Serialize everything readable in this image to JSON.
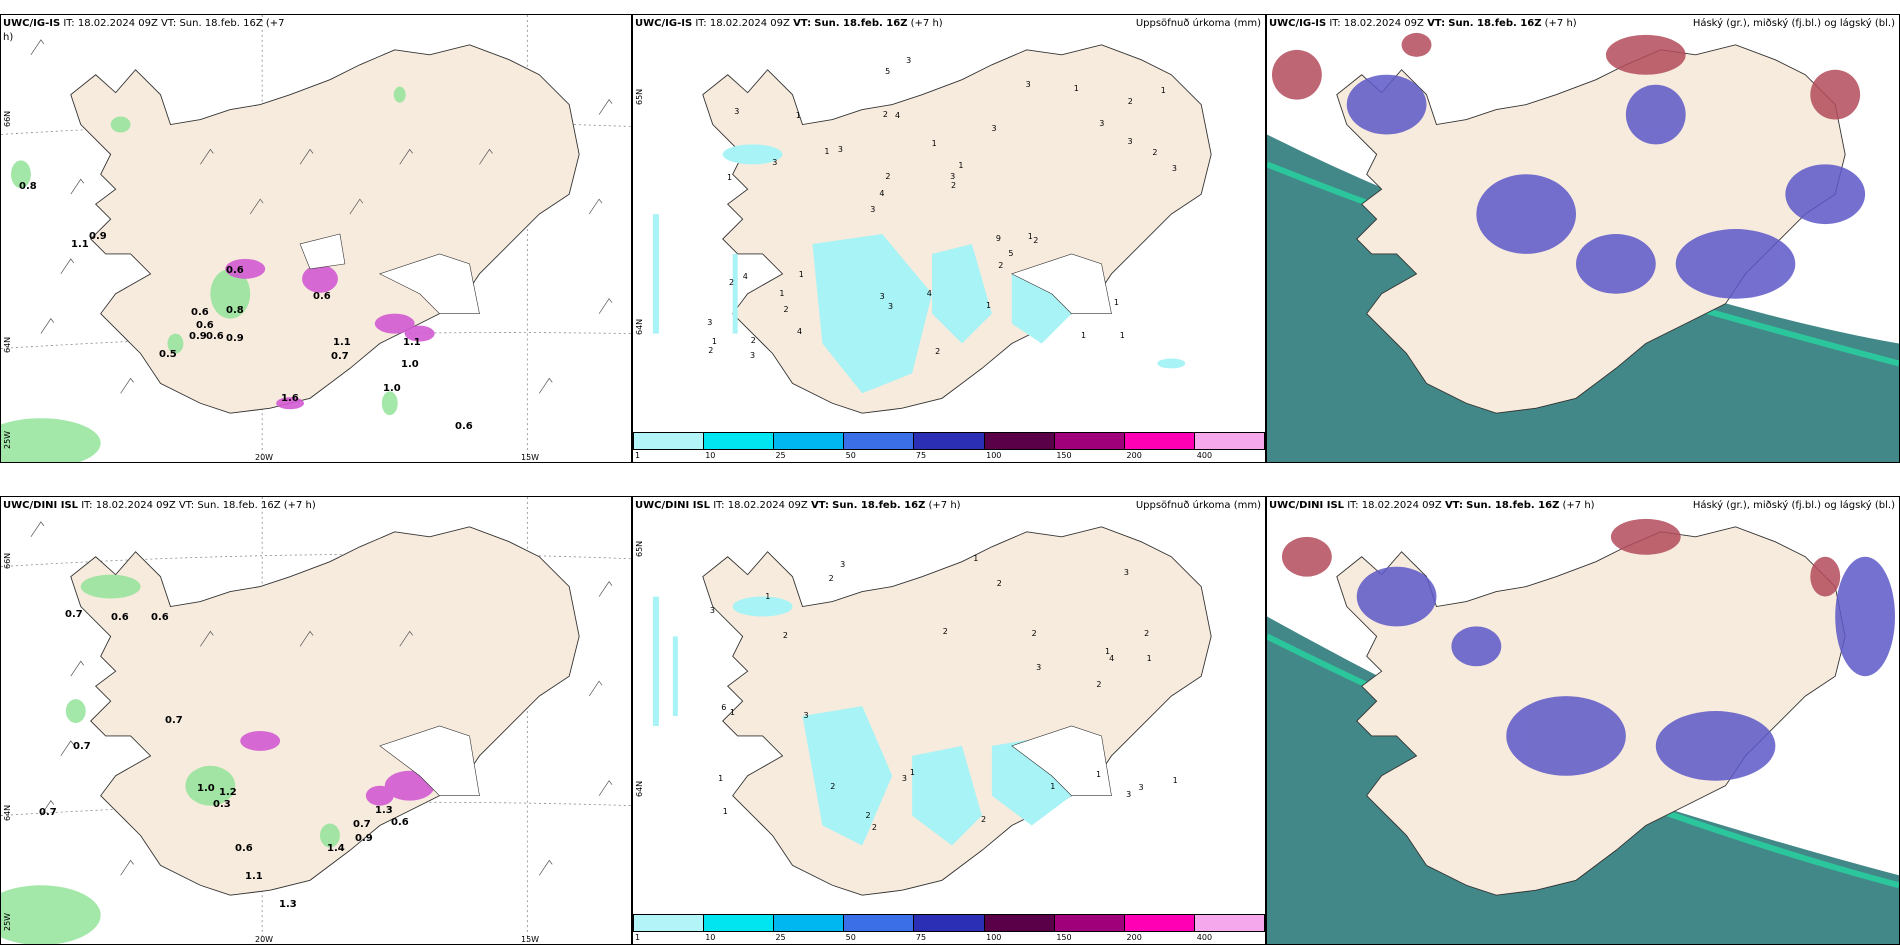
{
  "rows": [
    {
      "model": "UWC/IG-IS",
      "wind_panel": {
        "header_model": "UWC/IG-IS",
        "header_rest": "IT: 18.02.2024 09Z VT: Sun. 18.feb. 16Z (+7",
        "header_wrap": "h)",
        "lat_labels": [
          "66N",
          "64N",
          "25W"
        ],
        "lon_labels": [
          "20W",
          "15W"
        ],
        "values": [
          "0.8",
          "0.9",
          "1.1",
          "0.6",
          "0.6",
          "0.6",
          "0.9",
          "0.6",
          "0.6",
          "0.9",
          "0.5",
          "0.8",
          "1.5",
          "1.6",
          "0.6",
          "0.1",
          "0.7",
          "1.1",
          "1.1",
          "1.0",
          "1.0",
          "0.6",
          "0.6",
          "0.5"
        ]
      },
      "precip_panel": {
        "model": "UWC/IG-IS",
        "it": "IT: 18.02.2024 09Z",
        "vt_label": "VT:",
        "vt": "Sun. 18.feb. 16Z",
        "lead": "(+7 h)",
        "title": "Uppsöfnuð úrkoma (mm)",
        "lat_labels": [
          "65N",
          "64N"
        ],
        "values": [
          "1",
          "1",
          "2",
          "3",
          "3",
          "2",
          "2",
          "1",
          "4",
          "3",
          "3",
          "2",
          "4",
          "1",
          "2",
          "3",
          "5",
          "3",
          "9",
          "3",
          "4",
          "3",
          "2",
          "1",
          "3",
          "1",
          "1",
          "1",
          "1",
          "2",
          "1",
          "3",
          "2",
          "4",
          "2",
          "3",
          "1",
          "3",
          "2",
          "2",
          "3",
          "1",
          "5",
          "1",
          "1",
          "3",
          "2",
          "4",
          "1",
          "3"
        ]
      },
      "cloud_panel": {
        "model": "UWC/IG-IS",
        "it": "IT: 18.02.2024 09Z",
        "vt_label": "VT:",
        "vt": "Sun. 18.feb. 16Z",
        "lead": "(+7 h)",
        "title": "Háský (gr.), miðský (fj.bl.) og lágský (bl.)"
      }
    },
    {
      "model": "UWC/DINI ISL",
      "wind_panel": {
        "header_model": "UWC/DINI ISL",
        "header_rest": "IT: 18.02.2024 09Z VT: Sun. 18.feb. 16Z (+7 h)",
        "lat_labels": [
          "66N",
          "64N",
          "25W"
        ],
        "lon_labels": [
          "20W",
          "15W"
        ],
        "values": [
          "0.7",
          "0.6",
          "0.6",
          "0.7",
          "0.7",
          "0.7",
          "1.0",
          "0.3",
          "1.2",
          "1.3",
          "0.6",
          "0.7",
          "1.4",
          "0.9",
          "1.3",
          "0.6",
          "1.1",
          "1.3",
          "0.6",
          "0.7",
          "1.1",
          "0.6"
        ]
      },
      "precip_panel": {
        "model": "UWC/DINI ISL",
        "it": "IT: 18.02.2024 09Z",
        "vt_label": "VT:",
        "vt": "Sun. 18.feb. 16Z",
        "lead": "(+7 h)",
        "title": "Uppsöfnuð úrkoma (mm)",
        "lat_labels": [
          "65N",
          "64N"
        ],
        "values": [
          "1",
          "2",
          "3",
          "2",
          "1",
          "3",
          "1",
          "2",
          "3",
          "2",
          "1",
          "3",
          "2",
          "2",
          "1",
          "1",
          "3",
          "2",
          "1",
          "4",
          "6",
          "1",
          "2",
          "3",
          "2",
          "3",
          "1",
          "2",
          "2",
          "1",
          "3",
          "1"
        ]
      },
      "cloud_panel": {
        "model": "UWC/DINI ISL",
        "it": "IT: 18.02.2024 09Z",
        "vt_label": "VT:",
        "vt": "Sun. 18.feb. 16Z",
        "lead": "(+7 h)",
        "title": "Háský (gr.), miðský (fj.bl.) og lágský (bl.)"
      }
    }
  ],
  "colorbar": {
    "ticks": [
      "1",
      "10",
      "25",
      "50",
      "75",
      "100",
      "150",
      "200",
      "400"
    ],
    "colors": [
      "#b3f4f8",
      "#00e5f0",
      "#00b8ef",
      "#3b6fe8",
      "#2a2fb5",
      "#5a0048",
      "#a0007a",
      "#ff00b4",
      "#f5a8ec"
    ]
  },
  "colors": {
    "land": "#f7ebdd",
    "precip_light": "#a8f3f5",
    "wind_precip_green": "#93e39a",
    "magenta": "#d25ad2",
    "cloud_teal": "#2f7b7b",
    "cloud_blue": "#5d58c8",
    "cloud_red": "#b34b5a"
  }
}
